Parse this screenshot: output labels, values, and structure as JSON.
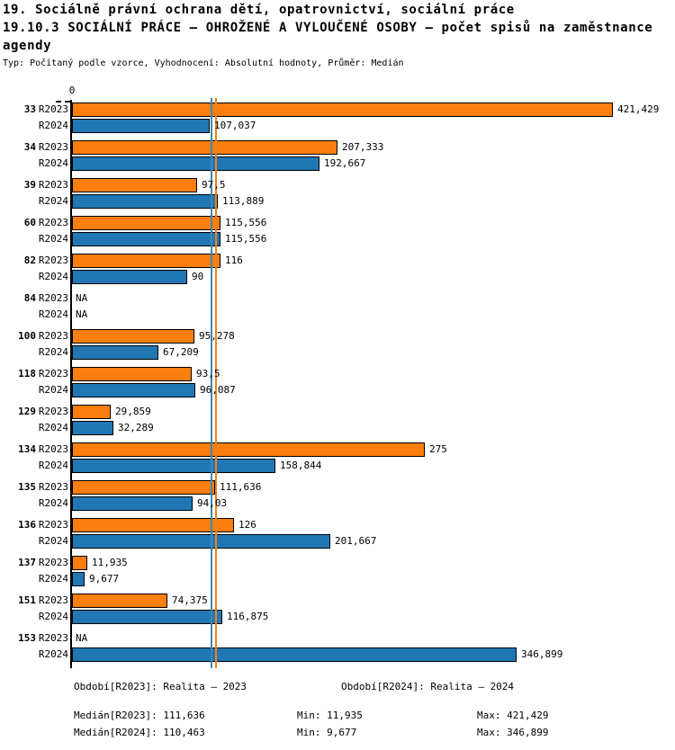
{
  "header": {
    "title_line1": "19. Sociálně právní ochrana dětí, opatrovnictví, sociální práce",
    "title_line2": "19.10.3 SOCIÁLNÍ PRÁCE — OHROŽENÉ A VYLOUČENÉ OSOBY — počet spisů na zaměstnance",
    "title_line3": "agendy",
    "meta": "Typ: Počítaný podle vzorce, Vyhodnocení: Absolutní hodnoty, Průměr: Medián"
  },
  "chart_data": {
    "type": "bar",
    "orientation": "horizontal",
    "axis_zero_label": "0",
    "series_labels": [
      "R2023",
      "R2024"
    ],
    "colors": {
      "r2023_bar": "#FB7E0E",
      "r2024_bar": "#2176B4",
      "r2023_median_line": "#F08119",
      "r2024_median_line": "#3E88B0",
      "bar_border": "#000000"
    },
    "xlim": [
      0,
      466
    ],
    "grid": false,
    "legend_position": "none",
    "median_lines": [
      {
        "series": "R2023",
        "value": 111.636
      },
      {
        "series": "R2024",
        "value": 110.463
      }
    ],
    "categories": [
      "33",
      "34",
      "39",
      "60",
      "82",
      "84",
      "100",
      "118",
      "129",
      "134",
      "135",
      "136",
      "137",
      "151",
      "153"
    ],
    "rows": [
      {
        "category": "33",
        "r2023": {
          "value": 421.429,
          "label": "421,429"
        },
        "r2024": {
          "value": 107.037,
          "label": "107,037"
        }
      },
      {
        "category": "34",
        "r2023": {
          "value": 207.333,
          "label": "207,333"
        },
        "r2024": {
          "value": 192.667,
          "label": "192,667"
        }
      },
      {
        "category": "39",
        "r2023": {
          "value": 97.5,
          "label": "97,5"
        },
        "r2024": {
          "value": 113.889,
          "label": "113,889"
        }
      },
      {
        "category": "60",
        "r2023": {
          "value": 115.556,
          "label": "115,556"
        },
        "r2024": {
          "value": 115.556,
          "label": "115,556"
        }
      },
      {
        "category": "82",
        "r2023": {
          "value": 116,
          "label": "116"
        },
        "r2024": {
          "value": 90,
          "label": "90"
        }
      },
      {
        "category": "84",
        "r2023": {
          "value": null,
          "label": "NA"
        },
        "r2024": {
          "value": null,
          "label": "NA"
        }
      },
      {
        "category": "100",
        "r2023": {
          "value": 95.278,
          "label": "95,278"
        },
        "r2024": {
          "value": 67.209,
          "label": "67,209"
        }
      },
      {
        "category": "118",
        "r2023": {
          "value": 93.5,
          "label": "93,5"
        },
        "r2024": {
          "value": 96.087,
          "label": "96,087"
        }
      },
      {
        "category": "129",
        "r2023": {
          "value": 29.859,
          "label": "29,859"
        },
        "r2024": {
          "value": 32.289,
          "label": "32,289"
        }
      },
      {
        "category": "134",
        "r2023": {
          "value": 275,
          "label": "275"
        },
        "r2024": {
          "value": 158.844,
          "label": "158,844"
        }
      },
      {
        "category": "135",
        "r2023": {
          "value": 111.636,
          "label": "111,636"
        },
        "r2024": {
          "value": 94.03,
          "label": "94,03"
        }
      },
      {
        "category": "136",
        "r2023": {
          "value": 126,
          "label": "126"
        },
        "r2024": {
          "value": 201.667,
          "label": "201,667"
        }
      },
      {
        "category": "137",
        "r2023": {
          "value": 11.935,
          "label": "11,935"
        },
        "r2024": {
          "value": 9.677,
          "label": "9,677"
        }
      },
      {
        "category": "151",
        "r2023": {
          "value": 74.375,
          "label": "74,375"
        },
        "r2024": {
          "value": 116.875,
          "label": "116,875"
        }
      },
      {
        "category": "153",
        "r2023": {
          "value": null,
          "label": "NA"
        },
        "r2024": {
          "value": 346.899,
          "label": "346,899"
        }
      }
    ]
  },
  "footer": {
    "period_r2023": "Období[R2023]: Realita – 2023",
    "period_r2024": "Období[R2024]: Realita – 2024",
    "median_r2023": "Medián[R2023]: 111,636",
    "median_r2024": "Medián[R2024]: 110,463",
    "min_r2023": "Min: 11,935",
    "min_r2024": "Min: 9,677",
    "max_r2023": "Max: 421,429",
    "max_r2024": "Max: 346,899"
  }
}
